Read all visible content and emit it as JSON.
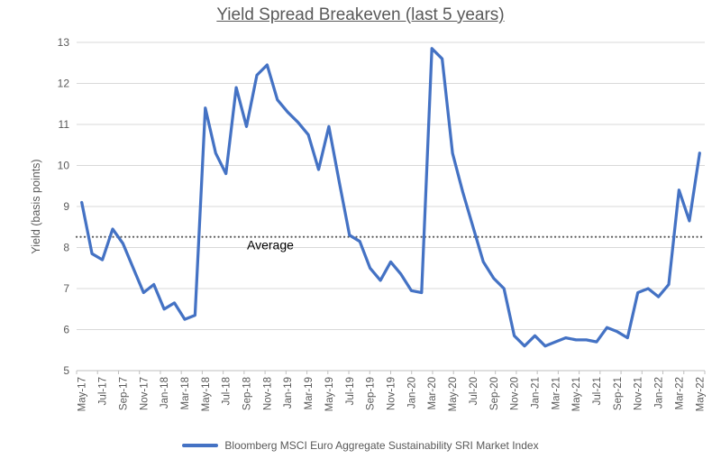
{
  "chart_data": {
    "type": "line",
    "title": "Yield Spread Breakeven (last 5 years)",
    "ylabel": "Yield (basis points)",
    "xlabel": "",
    "ylim": [
      5,
      13
    ],
    "ytick_step": 1,
    "grid": true,
    "legend_position": "bottom",
    "xtick_label_every": 2,
    "categories": [
      "May-17",
      "Jun-17",
      "Jul-17",
      "Aug-17",
      "Sep-17",
      "Oct-17",
      "Nov-17",
      "Dec-17",
      "Jan-18",
      "Feb-18",
      "Mar-18",
      "Apr-18",
      "May-18",
      "Jun-18",
      "Jul-18",
      "Aug-18",
      "Sep-18",
      "Oct-18",
      "Nov-18",
      "Dec-18",
      "Jan-19",
      "Feb-19",
      "Mar-19",
      "Apr-19",
      "May-19",
      "Jun-19",
      "Jul-19",
      "Aug-19",
      "Sep-19",
      "Oct-19",
      "Nov-19",
      "Dec-19",
      "Jan-20",
      "Feb-20",
      "Mar-20",
      "Apr-20",
      "May-20",
      "Jun-20",
      "Jul-20",
      "Aug-20",
      "Sep-20",
      "Oct-20",
      "Nov-20",
      "Dec-20",
      "Jan-21",
      "Feb-21",
      "Mar-21",
      "Apr-21",
      "May-21",
      "Jun-21",
      "Jul-21",
      "Aug-21",
      "Sep-21",
      "Oct-21",
      "Nov-21",
      "Dec-21",
      "Jan-22",
      "Feb-22",
      "Mar-22",
      "Apr-22",
      "May-22"
    ],
    "series": [
      {
        "name": "Bloomberg MSCI Euro Aggregate Sustainability SRI Market Index",
        "color": "#4472C4",
        "values": [
          9.1,
          7.85,
          7.7,
          8.45,
          8.1,
          7.5,
          6.9,
          7.1,
          6.5,
          6.65,
          6.25,
          6.35,
          11.4,
          10.3,
          9.8,
          11.9,
          10.95,
          12.2,
          12.45,
          11.6,
          11.3,
          11.05,
          10.75,
          9.9,
          10.95,
          9.6,
          8.3,
          8.15,
          7.5,
          7.2,
          7.65,
          7.35,
          6.95,
          6.9,
          12.85,
          12.6,
          10.3,
          9.35,
          8.5,
          7.65,
          7.25,
          7.0,
          5.85,
          5.6,
          5.85,
          5.6,
          5.7,
          5.8,
          5.75,
          5.75,
          5.7,
          6.05,
          5.95,
          5.8,
          6.9,
          7.0,
          6.8,
          7.1,
          9.4,
          8.65,
          10.3
        ]
      }
    ],
    "average_line": {
      "label": "Average",
      "value": 8.26,
      "color": "#595959"
    }
  },
  "colors": {
    "background": "#FFFFFF",
    "grid": "#D9D9D9",
    "axis": "#BFBFBF",
    "tick_label": "#595959",
    "title": "#595959",
    "average_label": "#000000"
  }
}
